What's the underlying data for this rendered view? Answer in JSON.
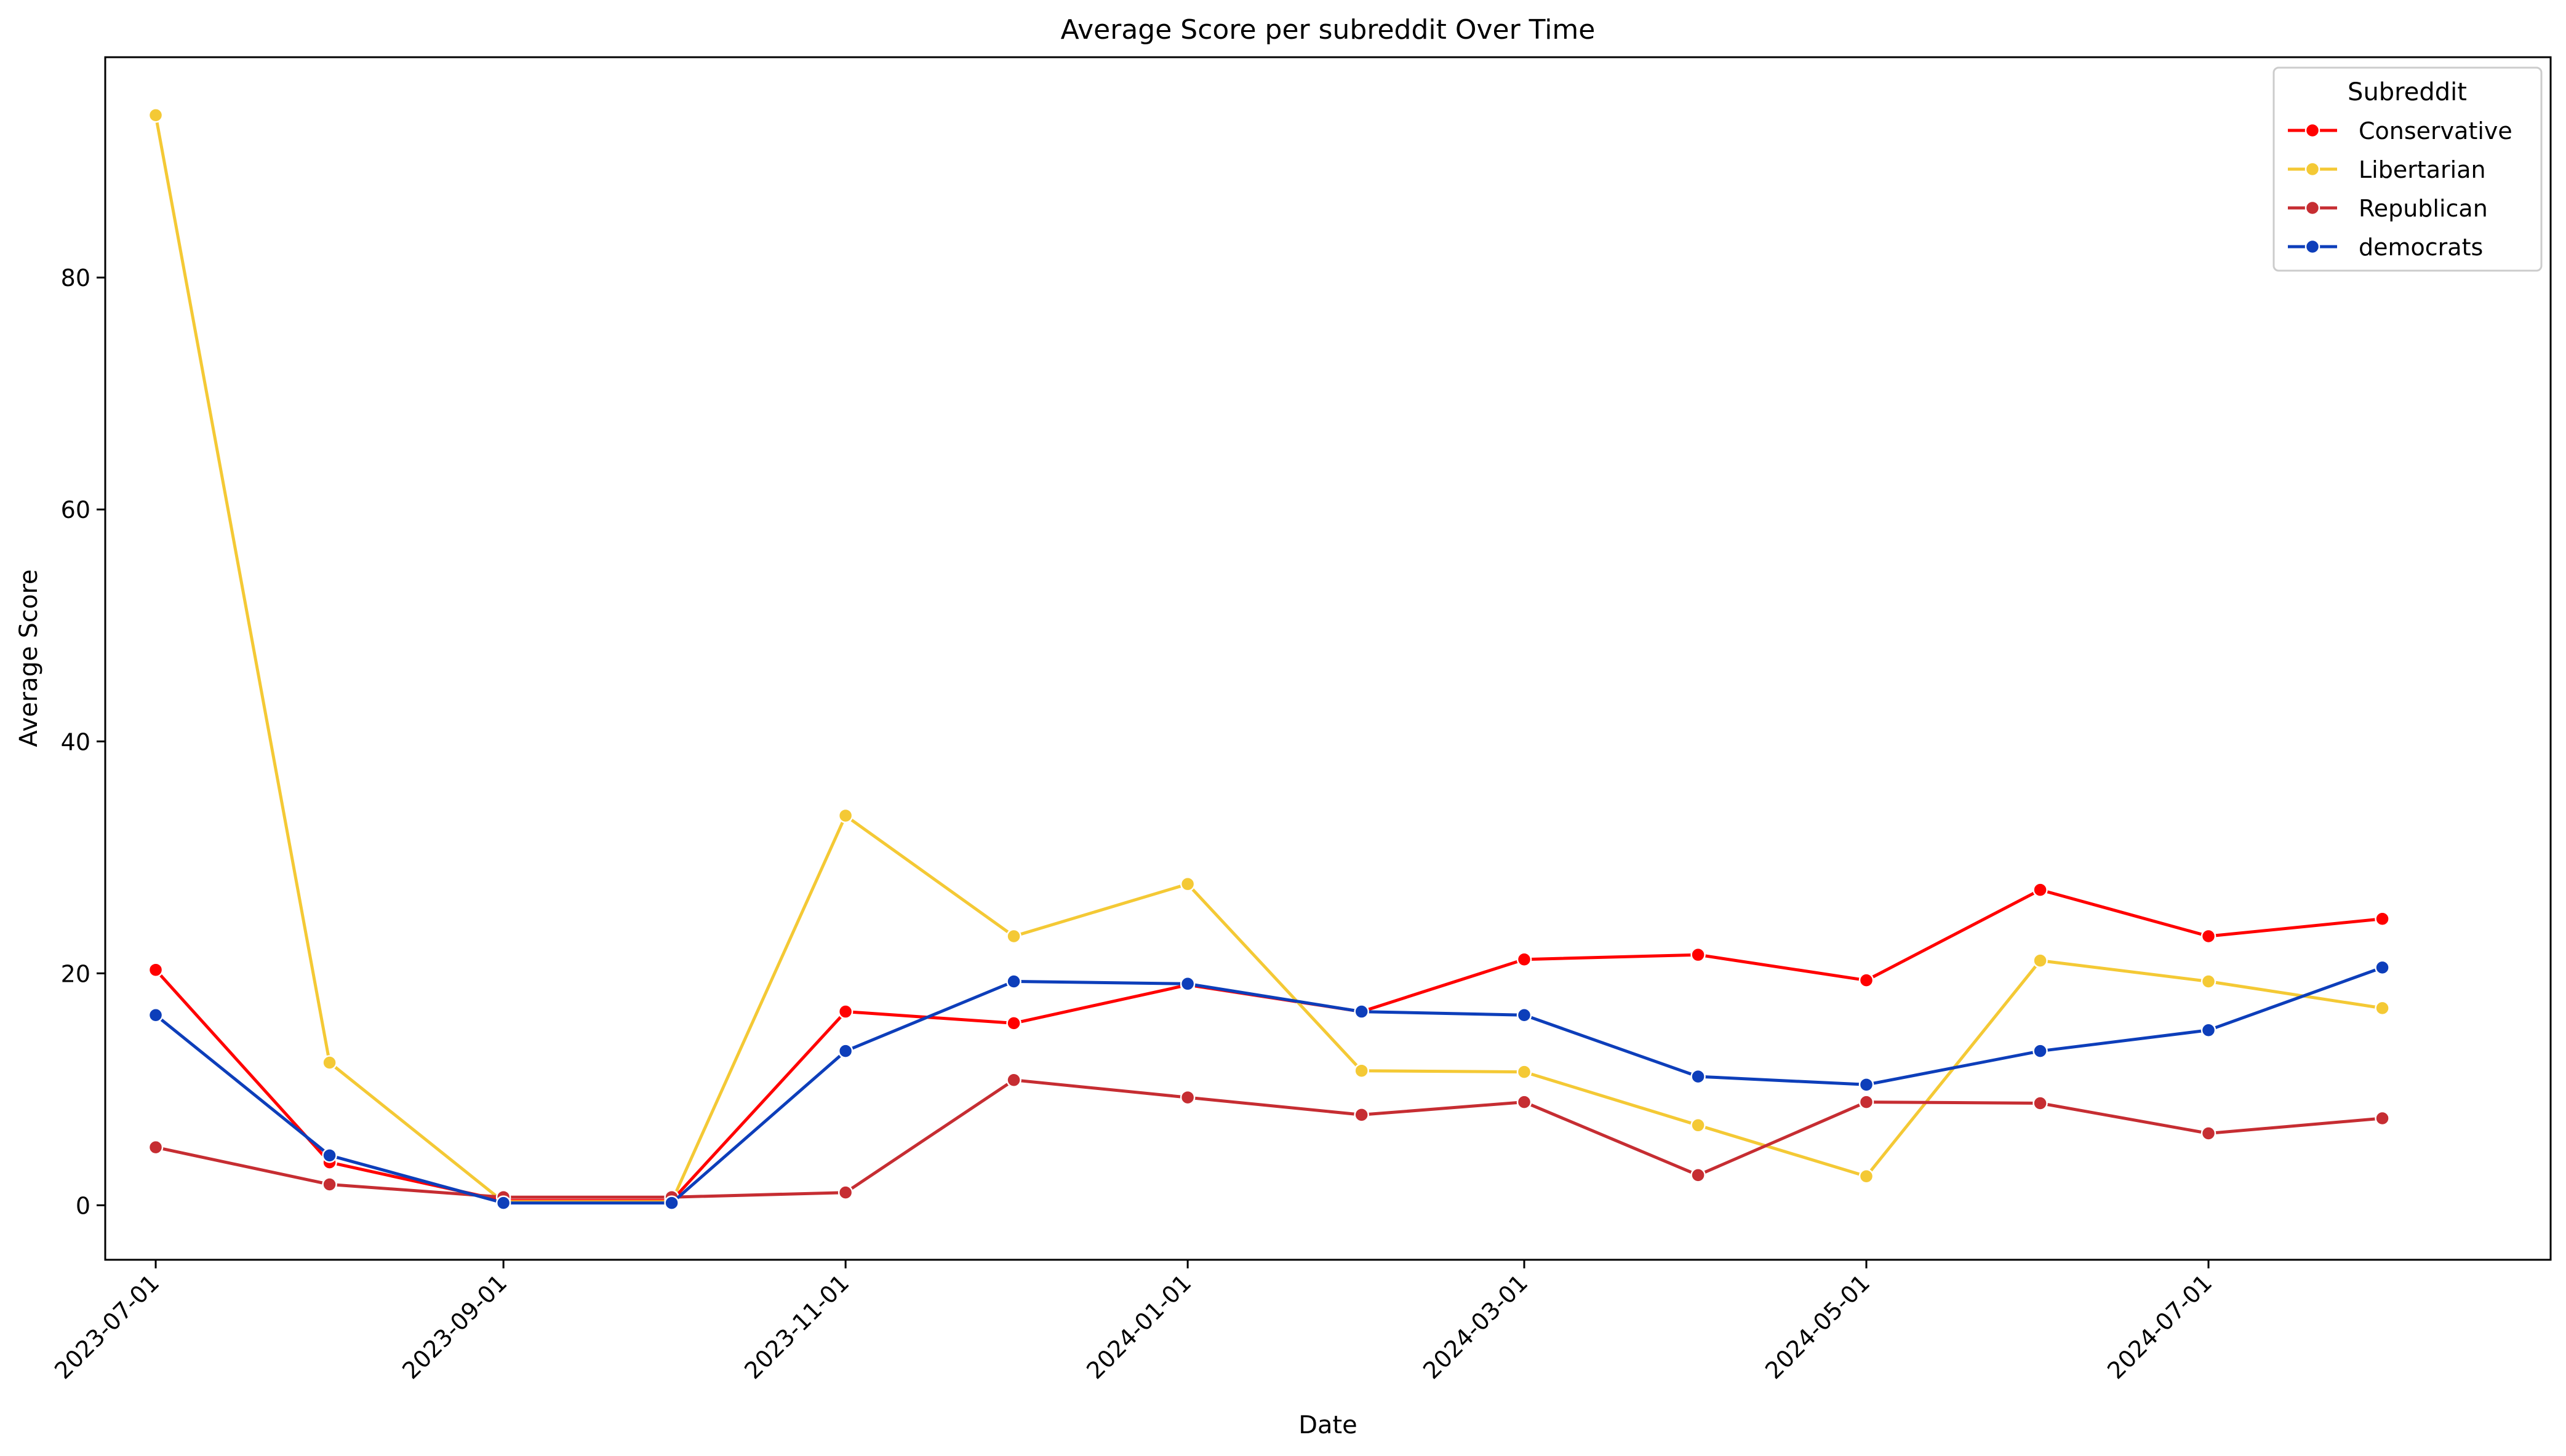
{
  "chart_data": {
    "type": "line",
    "title": "Average Score per subreddit Over Time",
    "xlabel": "Date",
    "ylabel": "Average Score",
    "x": [
      "2023-07-01",
      "2023-08-01",
      "2023-09-01",
      "2023-10-01",
      "2023-11-01",
      "2023-12-01",
      "2024-01-01",
      "2024-02-01",
      "2024-03-01",
      "2024-04-01",
      "2024-05-01",
      "2024-06-01",
      "2024-07-01",
      "2024-08-01"
    ],
    "x_ticks": [
      "2023-07-01",
      "2023-09-01",
      "2023-11-01",
      "2024-01-01",
      "2024-03-01",
      "2024-05-01",
      "2024-07-01"
    ],
    "y_ticks": [
      0,
      20,
      40,
      60,
      80
    ],
    "ylim": [
      -4.7,
      99
    ],
    "xlim": [
      "2023-06-22",
      "2024-08-31"
    ],
    "grid": false,
    "legend": {
      "title": "Subreddit",
      "placement": "top-right"
    },
    "series": [
      {
        "name": "Conservative",
        "color": "#ff0000",
        "values": [
          20.3,
          3.7,
          0.4,
          0.4,
          16.7,
          15.7,
          19.0,
          16.7,
          21.2,
          21.6,
          19.4,
          27.2,
          23.2,
          24.7
        ]
      },
      {
        "name": "Libertarian",
        "color": "#f4c935",
        "values": [
          94.0,
          12.3,
          0.3,
          0.3,
          33.6,
          23.2,
          27.7,
          11.6,
          11.5,
          6.9,
          2.5,
          21.1,
          19.3,
          17.0
        ]
      },
      {
        "name": "Republican",
        "color": "#c62d32",
        "values": [
          5.0,
          1.8,
          0.7,
          0.7,
          1.1,
          10.8,
          9.3,
          7.8,
          8.9,
          2.6,
          8.9,
          8.8,
          6.2,
          7.5
        ]
      },
      {
        "name": "democrats",
        "color": "#0d3eba",
        "values": [
          16.4,
          4.3,
          0.2,
          0.2,
          13.3,
          19.3,
          19.1,
          16.7,
          16.4,
          11.1,
          10.4,
          13.3,
          15.1,
          20.5
        ]
      }
    ]
  }
}
